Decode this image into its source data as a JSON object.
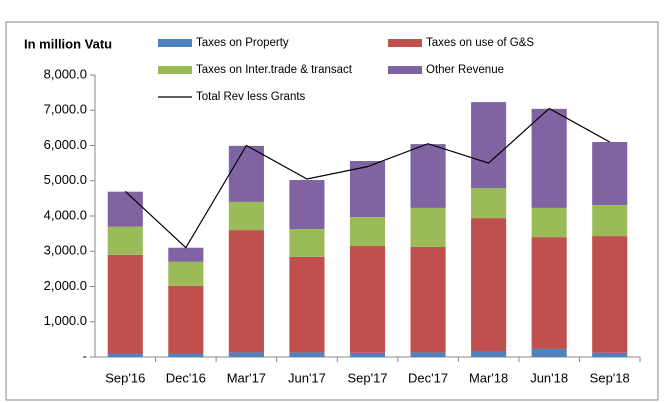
{
  "chart_data": {
    "type": "bar",
    "stacked": true,
    "title": "In million Vatu",
    "categories": [
      "Sep'16",
      "Dec'16",
      "Mar'17",
      "Jun'17",
      "Sep'17",
      "Dec'17",
      "Mar'18",
      "Jun'18",
      "Sep'18"
    ],
    "series": [
      {
        "name": "Taxes on Property",
        "color": "#4f81bd",
        "values": [
          100,
          100,
          130,
          130,
          120,
          130,
          170,
          230,
          120
        ]
      },
      {
        "name": "Taxes on use of G&S",
        "color": "#c0504d",
        "values": [
          2800,
          1920,
          3470,
          2710,
          3030,
          2990,
          3770,
          3170,
          3310
        ]
      },
      {
        "name": "Taxes on Inter.trade & transact",
        "color": "#9bbb59",
        "values": [
          800,
          680,
          800,
          790,
          820,
          1110,
          850,
          830,
          880
        ]
      },
      {
        "name": "Other Revenue",
        "color": "#8064a2",
        "values": [
          990,
          400,
          1590,
          1390,
          1590,
          1810,
          2440,
          2810,
          1790
        ]
      },
      {
        "name": "Total Rev less Grants",
        "color": "#000000",
        "type": "line",
        "values": [
          4700,
          3100,
          6000,
          5050,
          5400,
          6050,
          5500,
          7050,
          6100
        ]
      }
    ],
    "ylim": [
      0,
      8000
    ],
    "yticks": [
      {
        "value": 0,
        "label": "-"
      },
      {
        "value": 1000,
        "label": "1,000.0"
      },
      {
        "value": 2000,
        "label": "2,000.0"
      },
      {
        "value": 3000,
        "label": "3,000.0"
      },
      {
        "value": 4000,
        "label": "4,000.0"
      },
      {
        "value": 5000,
        "label": "5,000.0"
      },
      {
        "value": 6000,
        "label": "6,000.0"
      },
      {
        "value": 7000,
        "label": "7,000.0"
      },
      {
        "value": 8000,
        "label": "8,000.0"
      }
    ],
    "grid": false
  }
}
